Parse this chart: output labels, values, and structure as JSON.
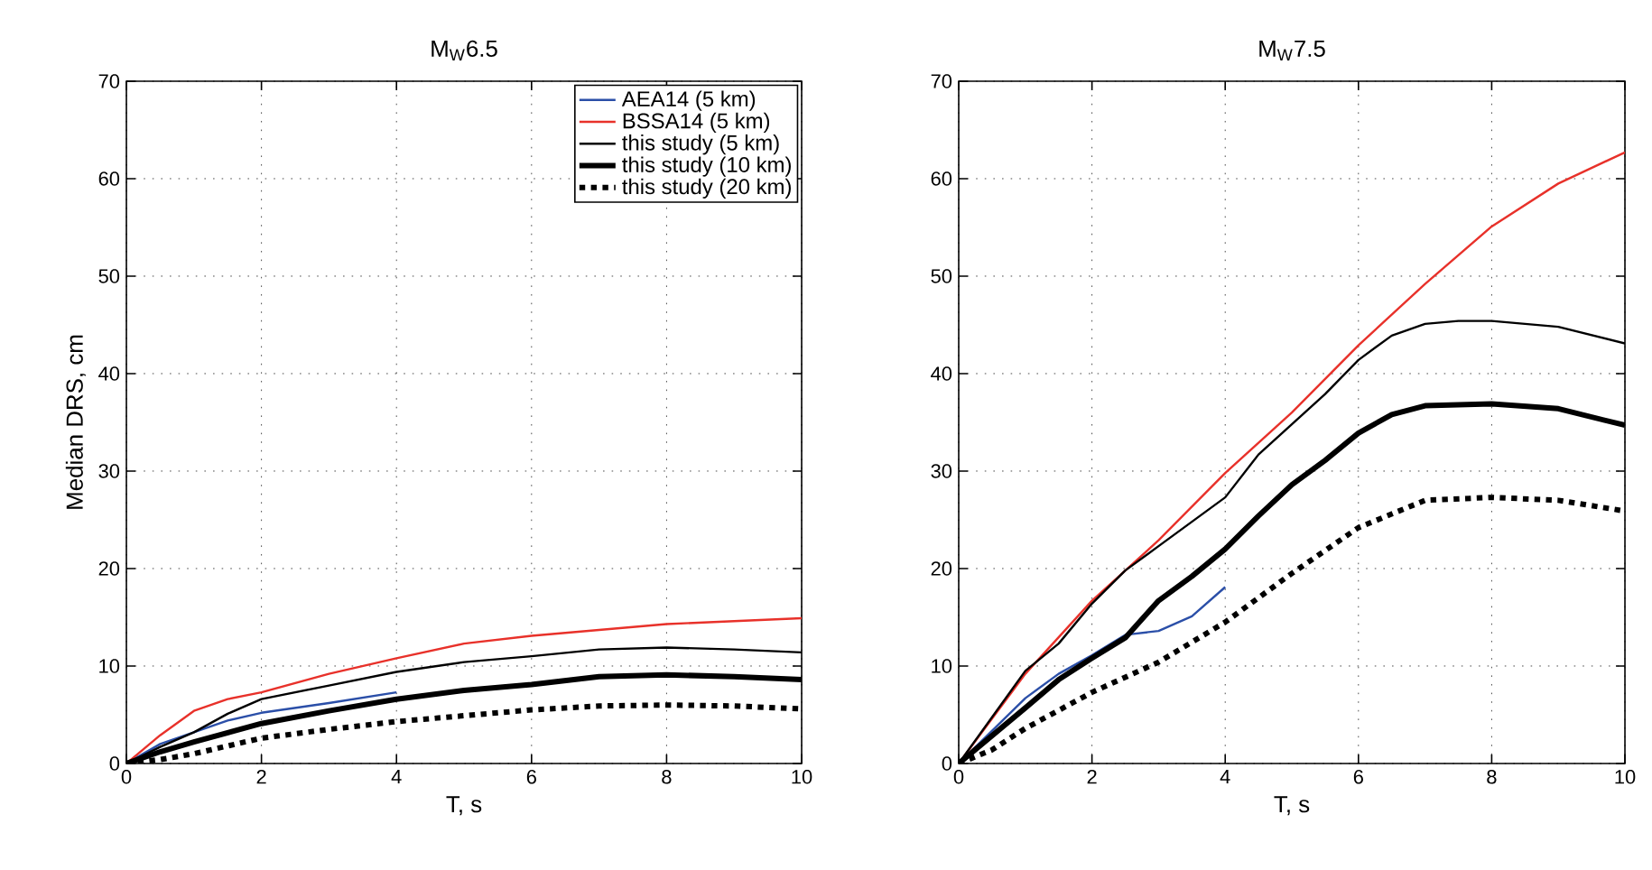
{
  "chart_data": [
    {
      "type": "line",
      "title": "M$_{W}$6.5",
      "xlabel": "T, s",
      "ylabel": "Median DRS, cm",
      "xlim": [
        0,
        10
      ],
      "ylim": [
        0,
        70
      ],
      "xticks": [
        0,
        2,
        4,
        6,
        8,
        10
      ],
      "yticks": [
        0,
        10,
        20,
        30,
        40,
        50,
        60,
        70
      ],
      "grid": true,
      "legend": "top right",
      "series": [
        {
          "name": "AEA14 (5 km)",
          "color": "#2b4fa8",
          "line_style": "solid",
          "x": [
            0,
            0.5,
            1,
            1.5,
            2,
            3,
            4
          ],
          "values": [
            0,
            2.0,
            3.2,
            4.4,
            5.2,
            6.2,
            7.3
          ]
        },
        {
          "name": "BSSA14 (5 km)",
          "color": "#e8312a",
          "line_style": "solid",
          "x": [
            0,
            0.5,
            1,
            1.5,
            2,
            3,
            4,
            5,
            6,
            7,
            8,
            9,
            10
          ],
          "values": [
            0,
            2.9,
            5.4,
            6.6,
            7.3,
            9.2,
            10.8,
            12.3,
            13.1,
            13.7,
            14.3,
            14.6,
            14.9
          ]
        },
        {
          "name": "this study (5 km)",
          "color": "#000000",
          "line_style": "solid",
          "x": [
            0,
            0.5,
            1,
            1.5,
            2,
            3,
            4,
            5,
            6,
            7,
            8,
            9,
            10
          ],
          "values": [
            0,
            1.7,
            3.2,
            5.1,
            6.6,
            8.0,
            9.4,
            10.4,
            11.0,
            11.7,
            11.9,
            11.7,
            11.4
          ]
        },
        {
          "name": "this study (10 km)",
          "color": "#000000",
          "line_style": "solid",
          "x": [
            0,
            0.5,
            1,
            2,
            3,
            4,
            5,
            6,
            7,
            8,
            9,
            10
          ],
          "values": [
            0,
            1.2,
            2.2,
            4.1,
            5.4,
            6.6,
            7.5,
            8.1,
            8.9,
            9.1,
            8.9,
            8.6
          ]
        },
        {
          "name": "this study (20 km)",
          "color": "#000000",
          "line_style": "dotted",
          "x": [
            0,
            0.5,
            1,
            2,
            3,
            4,
            5,
            6,
            7,
            8,
            9,
            10
          ],
          "values": [
            0,
            0.4,
            1.0,
            2.6,
            3.5,
            4.3,
            4.9,
            5.5,
            5.9,
            6.0,
            5.9,
            5.6
          ]
        }
      ]
    },
    {
      "type": "line",
      "title": "M$_{W}$7.5",
      "xlabel": "T, s",
      "xlim": [
        0,
        10
      ],
      "ylim": [
        0,
        70
      ],
      "xticks": [
        0,
        2,
        4,
        6,
        8,
        10
      ],
      "yticks": [
        0,
        10,
        20,
        30,
        40,
        50,
        60,
        70
      ],
      "grid": true,
      "series": [
        {
          "color": "#2b4fa8",
          "line_style": "solid",
          "x": [
            0,
            1,
            1.5,
            2,
            2.5,
            3,
            3.5,
            4
          ],
          "values": [
            0,
            6.7,
            9.2,
            11.1,
            13.2,
            13.6,
            15.1,
            18.1
          ]
        },
        {
          "color": "#e8312a",
          "line_style": "solid",
          "x": [
            0,
            1,
            2,
            3,
            4,
            5,
            6,
            7,
            8,
            9,
            10
          ],
          "values": [
            0,
            9.2,
            16.7,
            22.9,
            29.8,
            36.0,
            42.9,
            49.2,
            55.1,
            59.5,
            62.7
          ]
        },
        {
          "color": "#000000",
          "line_style": "solid",
          "x": [
            0,
            1,
            1.5,
            2,
            2.5,
            3,
            3.5,
            4,
            4.5,
            5,
            5.5,
            6,
            6.5,
            7,
            7.5,
            8,
            9,
            10
          ],
          "values": [
            0,
            9.5,
            12.3,
            16.4,
            19.8,
            22.3,
            24.8,
            27.3,
            31.7,
            34.8,
            37.9,
            41.4,
            43.9,
            45.1,
            45.4,
            45.4,
            44.8,
            43.1
          ]
        },
        {
          "color": "#000000",
          "line_style": "solid",
          "x": [
            0,
            1,
            1.5,
            2,
            2.5,
            3,
            3.5,
            4,
            4.5,
            5,
            5.5,
            6,
            6.5,
            7,
            8,
            9,
            10
          ],
          "values": [
            0,
            5.7,
            8.6,
            10.8,
            12.9,
            16.7,
            19.2,
            22.0,
            25.4,
            28.6,
            31.1,
            33.9,
            35.8,
            36.7,
            36.9,
            36.4,
            34.7
          ]
        },
        {
          "color": "#000000",
          "line_style": "dotted",
          "x": [
            0,
            0.5,
            1,
            2,
            3,
            4,
            5,
            6,
            7,
            8,
            9,
            10
          ],
          "values": [
            0,
            1.4,
            3.6,
            7.3,
            10.4,
            14.5,
            19.5,
            24.2,
            27.0,
            27.3,
            27.0,
            25.9
          ]
        }
      ]
    }
  ]
}
